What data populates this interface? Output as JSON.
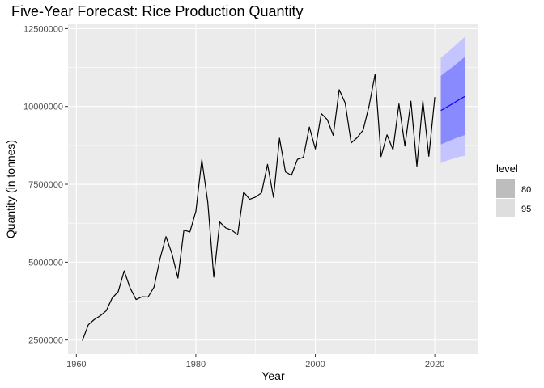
{
  "chart_data": {
    "type": "line",
    "title": "Five-Year Forecast: Rice Production Quantity",
    "xlabel": "Year",
    "ylabel": "Quantity (in tonnes)",
    "xlim": [
      1958.6,
      2027.3
    ],
    "ylim": [
      2050000,
      12640000
    ],
    "x_ticks": [
      1960,
      1980,
      2000,
      2020
    ],
    "y_ticks": [
      2500000,
      5000000,
      7500000,
      10000000,
      12500000
    ],
    "y_tick_labels": [
      "2500000",
      "5000000",
      "7500000",
      "10000000",
      "12500000"
    ],
    "grid": true,
    "legend": {
      "title": "level",
      "position": "right",
      "entries": [
        {
          "label": "80",
          "color": "#bdbdbd"
        },
        {
          "label": "95",
          "color": "#dedede"
        }
      ]
    },
    "colors": {
      "panel": "#ebebeb",
      "grid": "#ffffff",
      "history": "#000000",
      "forecast": "#0000ff",
      "band80": "#8a8aff",
      "band95": "#c4c4ff"
    },
    "history": {
      "x": [
        1961,
        1962,
        1963,
        1964,
        1965,
        1966,
        1967,
        1968,
        1969,
        1970,
        1971,
        1972,
        1973,
        1974,
        1975,
        1976,
        1977,
        1978,
        1979,
        1980,
        1981,
        1982,
        1983,
        1984,
        1985,
        1986,
        1987,
        1988,
        1989,
        1990,
        1991,
        1992,
        1993,
        1994,
        1995,
        1996,
        1997,
        1998,
        1999,
        2000,
        2001,
        2002,
        2003,
        2004,
        2005,
        2006,
        2007,
        2008,
        2009,
        2010,
        2011,
        2012,
        2013,
        2014,
        2015,
        2016,
        2017,
        2018,
        2019,
        2020
      ],
      "y": [
        2480000,
        2990000,
        3160000,
        3280000,
        3440000,
        3850000,
        4050000,
        4720000,
        4170000,
        3800000,
        3890000,
        3880000,
        4200000,
        5110000,
        5820000,
        5270000,
        4490000,
        6030000,
        5970000,
        6630000,
        8290000,
        6920000,
        4520000,
        6290000,
        6100000,
        6030000,
        5880000,
        7250000,
        7020000,
        7090000,
        7230000,
        8140000,
        7080000,
        8980000,
        7900000,
        7790000,
        8300000,
        8370000,
        9340000,
        8640000,
        9770000,
        9580000,
        9070000,
        10540000,
        10110000,
        8830000,
        9000000,
        9240000,
        10020000,
        11030000,
        8390000,
        9090000,
        8610000,
        10080000,
        8730000,
        10170000,
        8080000,
        10180000,
        8400000,
        10300000
      ]
    },
    "forecast": {
      "x": [
        2021,
        2022,
        2023,
        2024,
        2025
      ],
      "mean": [
        9870000,
        9980000,
        10090000,
        10210000,
        10320000
      ],
      "lo80": [
        8780000,
        8860000,
        8940000,
        9020000,
        9080000
      ],
      "hi80": [
        10980000,
        11130000,
        11270000,
        11430000,
        11590000
      ],
      "lo95": [
        8180000,
        8260000,
        8320000,
        8380000,
        8420000
      ],
      "hi95": [
        11560000,
        11720000,
        11890000,
        12060000,
        12230000
      ]
    }
  }
}
